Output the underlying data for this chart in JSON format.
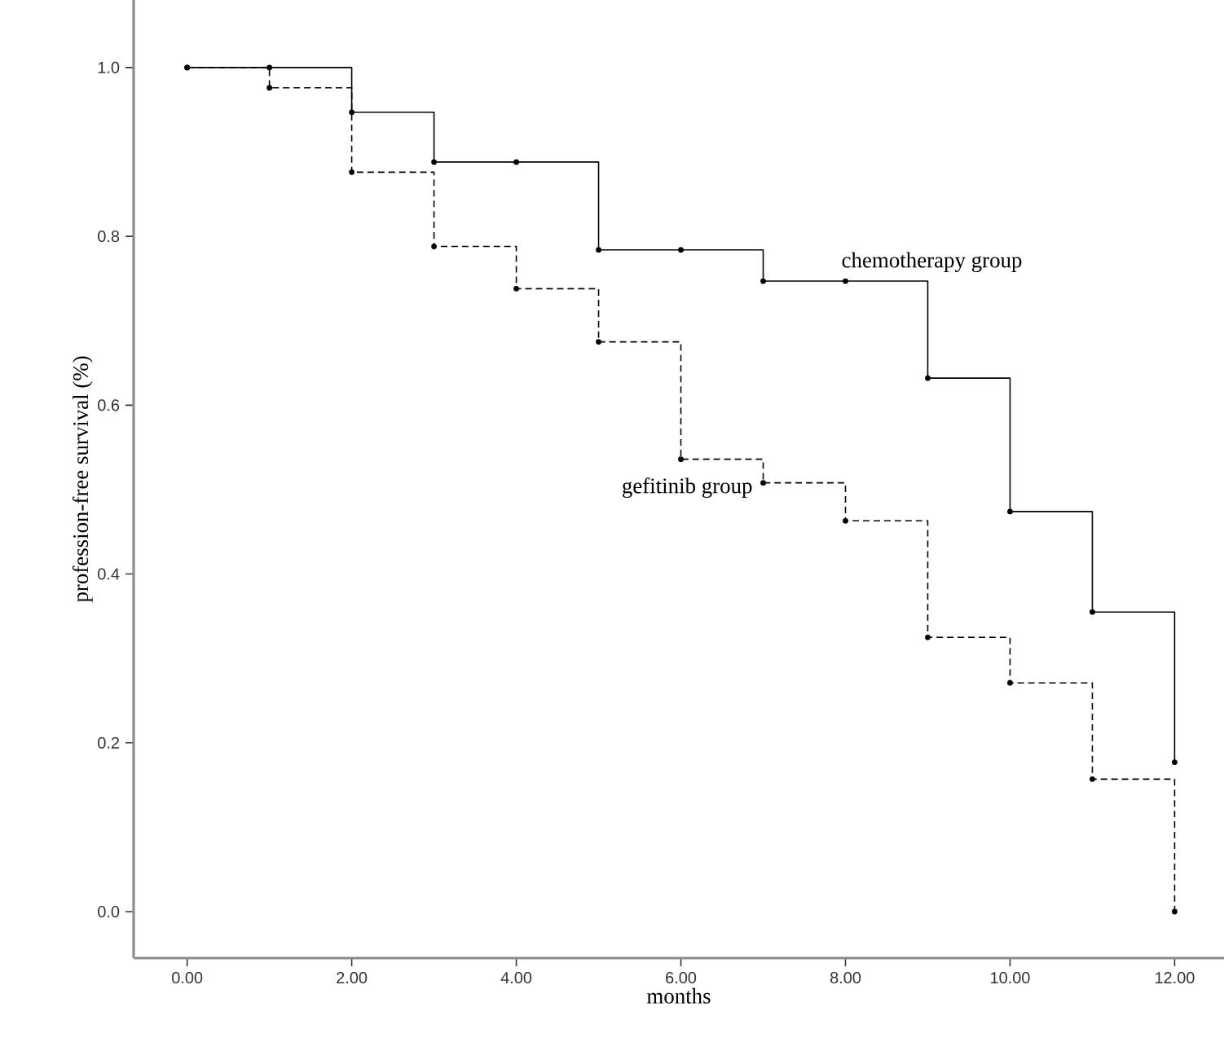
{
  "chart_data": {
    "type": "step",
    "xlabel": "months",
    "ylabel": "profession-free survival  (%)",
    "x": [
      0,
      1,
      2,
      3,
      4,
      5,
      6,
      7,
      8,
      9,
      10,
      11,
      12
    ],
    "series": [
      {
        "name": "chemotherapy group",
        "color": "#000000",
        "line_style": "solid",
        "values": [
          1.0,
          1.0,
          0.947,
          0.888,
          0.888,
          0.784,
          0.784,
          0.747,
          0.747,
          0.632,
          0.474,
          0.355,
          0.177
        ]
      },
      {
        "name": "gefitinib group",
        "color": "#000000",
        "line_style": "dashed",
        "values": [
          1.0,
          0.976,
          0.876,
          0.788,
          0.738,
          0.675,
          0.536,
          0.508,
          0.463,
          0.325,
          0.271,
          0.157,
          0.0
        ]
      }
    ],
    "marker": "circle",
    "grid": false,
    "legend": false,
    "xlim": [
      -0.65,
      12.6
    ],
    "ylim": [
      -0.055,
      1.08
    ],
    "xticks": [
      {
        "value": 0,
        "label": "0.00"
      },
      {
        "value": 2,
        "label": "2.00"
      },
      {
        "value": 4,
        "label": "4.00"
      },
      {
        "value": 6,
        "label": "6.00"
      },
      {
        "value": 8,
        "label": "8.00"
      },
      {
        "value": 10,
        "label": "10.00"
      },
      {
        "value": 12,
        "label": "12.00"
      }
    ],
    "yticks": [
      {
        "value": 0,
        "label": "0.0"
      },
      {
        "value": 0.2,
        "label": "0.2"
      },
      {
        "value": 0.4,
        "label": "0.4"
      },
      {
        "value": 0.6,
        "label": "0.6"
      },
      {
        "value": 0.8,
        "label": "0.8"
      },
      {
        "value": 1.0,
        "label": "1.0"
      }
    ]
  }
}
